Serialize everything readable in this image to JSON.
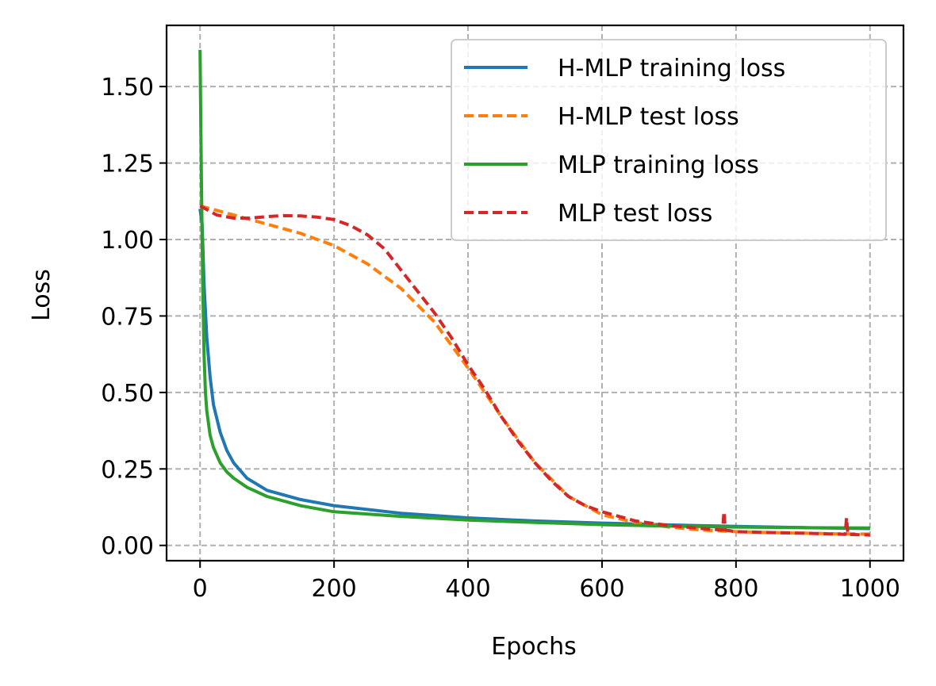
{
  "chart_data": {
    "type": "line",
    "title": "",
    "xlabel": "Epochs",
    "ylabel": "Loss",
    "xlim": [
      -50,
      1050
    ],
    "ylim": [
      -0.05,
      1.7
    ],
    "xticks": [
      0,
      200,
      400,
      600,
      800,
      1000
    ],
    "yticks": [
      0.0,
      0.25,
      0.5,
      0.75,
      1.0,
      1.25,
      1.5
    ],
    "xtick_labels": [
      "0",
      "200",
      "400",
      "600",
      "800",
      "1000"
    ],
    "ytick_labels": [
      "0.00",
      "0.25",
      "0.50",
      "0.75",
      "1.00",
      "1.25",
      "1.50"
    ],
    "grid": true,
    "legend_position": "top-right",
    "series": [
      {
        "name": "H-MLP training loss",
        "color": "#1f77b4",
        "style": "solid",
        "x": [
          0,
          3,
          6,
          10,
          15,
          20,
          30,
          40,
          50,
          70,
          100,
          150,
          200,
          300,
          400,
          500,
          600,
          700,
          800,
          900,
          1000
        ],
        "y": [
          1.1,
          1.05,
          0.85,
          0.68,
          0.55,
          0.46,
          0.37,
          0.31,
          0.27,
          0.22,
          0.18,
          0.15,
          0.13,
          0.105,
          0.09,
          0.08,
          0.073,
          0.067,
          0.062,
          0.058,
          0.055
        ]
      },
      {
        "name": "H-MLP test loss",
        "color": "#ff7f0e",
        "style": "dashed",
        "x": [
          0,
          50,
          100,
          150,
          200,
          250,
          300,
          350,
          400,
          450,
          500,
          550,
          600,
          650,
          700,
          750,
          800,
          850,
          900,
          950,
          1000
        ],
        "y": [
          1.11,
          1.08,
          1.05,
          1.02,
          0.98,
          0.92,
          0.84,
          0.73,
          0.58,
          0.42,
          0.27,
          0.16,
          0.1,
          0.075,
          0.06,
          0.05,
          0.045,
          0.042,
          0.04,
          0.038,
          0.037
        ]
      },
      {
        "name": "MLP training loss",
        "color": "#2ca02c",
        "style": "solid",
        "x": [
          0,
          2,
          4,
          6,
          8,
          10,
          15,
          20,
          30,
          40,
          50,
          70,
          100,
          150,
          200,
          300,
          400,
          500,
          600,
          700,
          800,
          900,
          1000
        ],
        "y": [
          1.62,
          1.2,
          0.85,
          0.62,
          0.5,
          0.44,
          0.36,
          0.32,
          0.27,
          0.24,
          0.22,
          0.19,
          0.16,
          0.13,
          0.11,
          0.095,
          0.083,
          0.075,
          0.068,
          0.063,
          0.06,
          0.058,
          0.057
        ]
      },
      {
        "name": "MLP test loss",
        "color": "#d62728",
        "style": "dashed",
        "x": [
          0,
          25,
          50,
          75,
          100,
          125,
          150,
          175,
          200,
          225,
          250,
          275,
          300,
          325,
          350,
          375,
          400,
          425,
          450,
          475,
          500,
          525,
          550,
          575,
          600,
          650,
          700,
          750,
          780,
          782,
          784,
          800,
          850,
          900,
          950,
          963,
          965,
          967,
          1000
        ],
        "y": [
          1.11,
          1.08,
          1.07,
          1.07,
          1.075,
          1.078,
          1.077,
          1.073,
          1.065,
          1.045,
          1.015,
          0.97,
          0.9,
          0.83,
          0.76,
          0.68,
          0.59,
          0.51,
          0.42,
          0.34,
          0.27,
          0.21,
          0.16,
          0.13,
          0.11,
          0.08,
          0.065,
          0.055,
          0.05,
          0.11,
          0.05,
          0.045,
          0.042,
          0.04,
          0.037,
          0.036,
          0.09,
          0.036,
          0.034
        ]
      }
    ]
  }
}
